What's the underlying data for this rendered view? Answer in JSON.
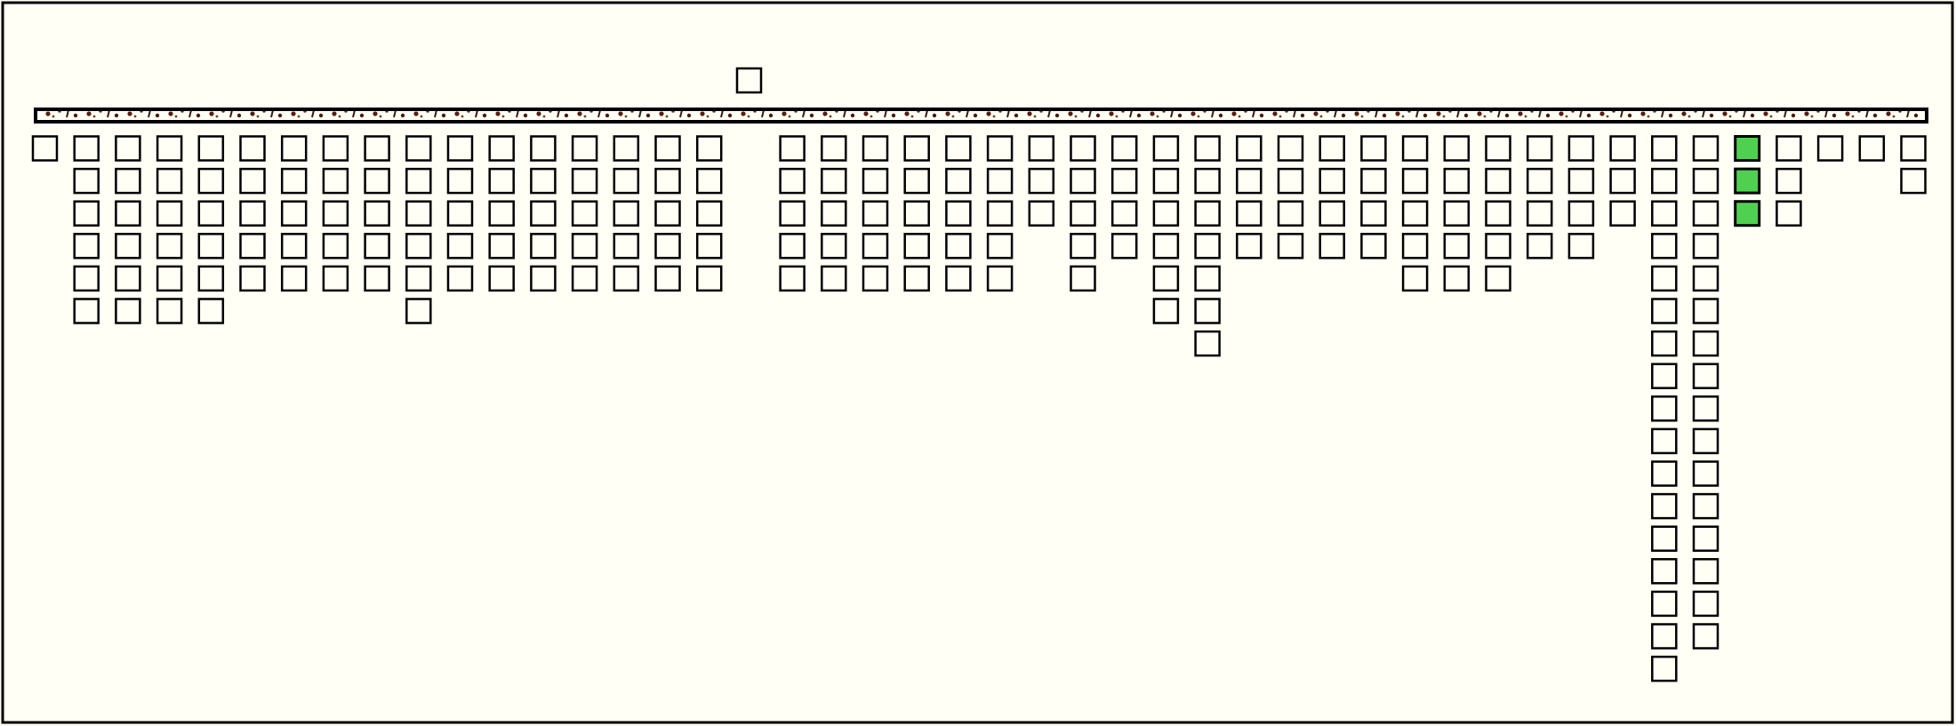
{
  "columns": [
    {
      "boxes": 1,
      "filled": false
    },
    {
      "boxes": 6,
      "filled": false
    },
    {
      "boxes": 6,
      "filled": false
    },
    {
      "boxes": 6,
      "filled": false
    },
    {
      "boxes": 6,
      "filled": false
    },
    {
      "boxes": 5,
      "filled": false
    },
    {
      "boxes": 5,
      "filled": false
    },
    {
      "boxes": 5,
      "filled": false
    },
    {
      "boxes": 5,
      "filled": false
    },
    {
      "boxes": 6,
      "filled": false
    },
    {
      "boxes": 5,
      "filled": false
    },
    {
      "boxes": 5,
      "filled": false
    },
    {
      "boxes": 5,
      "filled": false
    },
    {
      "boxes": 5,
      "filled": false
    },
    {
      "boxes": 5,
      "filled": false
    },
    {
      "boxes": 5,
      "filled": false
    },
    {
      "boxes": 5,
      "filled": false
    },
    {
      "boxes": 0,
      "filled": false
    },
    {
      "boxes": 5,
      "filled": false
    },
    {
      "boxes": 5,
      "filled": false
    },
    {
      "boxes": 5,
      "filled": false
    },
    {
      "boxes": 5,
      "filled": false
    },
    {
      "boxes": 5,
      "filled": false
    },
    {
      "boxes": 5,
      "filled": false
    },
    {
      "boxes": 3,
      "filled": false
    },
    {
      "boxes": 5,
      "filled": false
    },
    {
      "boxes": 4,
      "filled": false
    },
    {
      "boxes": 6,
      "filled": false
    },
    {
      "boxes": 7,
      "filled": false
    },
    {
      "boxes": 4,
      "filled": false
    },
    {
      "boxes": 4,
      "filled": false
    },
    {
      "boxes": 4,
      "filled": false
    },
    {
      "boxes": 4,
      "filled": false
    },
    {
      "boxes": 5,
      "filled": false
    },
    {
      "boxes": 5,
      "filled": false
    },
    {
      "boxes": 5,
      "filled": false
    },
    {
      "boxes": 4,
      "filled": false
    },
    {
      "boxes": 4,
      "filled": false
    },
    {
      "boxes": 3,
      "filled": false
    },
    {
      "boxes": 17,
      "filled": false
    },
    {
      "boxes": 16,
      "filled": false
    },
    {
      "boxes": 3,
      "filled": true
    },
    {
      "boxes": 3,
      "filled": false
    },
    {
      "boxes": 1,
      "filled": false
    },
    {
      "boxes": 1,
      "filled": false
    },
    {
      "boxes": 2,
      "filled": false
    }
  ]
}
